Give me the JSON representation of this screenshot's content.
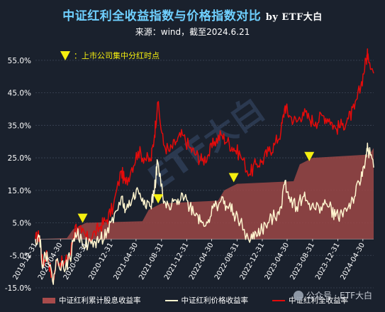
{
  "header": {
    "title": "中证红利全收益指数与价格指数对比",
    "title_by": "by ETF大白",
    "subtitle": "来源：wind，截至2024.6.21"
  },
  "legend": {
    "dividend": "中证红利累计股息收益率",
    "price": "中证红利价格收益率",
    "total": "中证红利全收益率"
  },
  "annotation_note": "：上市公司集中分红时点",
  "watermark_bg": "ETF大白",
  "watermark": "公众号 · ETF大白",
  "colors": {
    "background": "#1a212d",
    "total": "#e30b0b",
    "price": "#fff5cf",
    "dividend": "#9c4646",
    "marker": "#f5ef10",
    "title": "#6fd0ff"
  },
  "chart_data": {
    "type": "line",
    "title": "中证红利全收益指数与价格指数对比",
    "ylim": [
      -15,
      60
    ],
    "yticks": [
      -15,
      -5,
      5,
      15,
      25,
      35,
      45,
      55
    ],
    "ytick_labels": [
      "-15.0%",
      "-5.0%",
      "5.0%",
      "15.0%",
      "25.0%",
      "35.0%",
      "45.0%",
      "55.0%"
    ],
    "xlim": [
      "2019-12-31",
      "2024-06-21"
    ],
    "xticks": [
      "2019-12-31",
      "2020-04-30",
      "2020-08-31",
      "2020-12-31",
      "2021-04-30",
      "2021-08-31",
      "2021-12-31",
      "2022-04-30",
      "2022-08-31",
      "2022-12-31",
      "2023-04-30",
      "2023-08-31",
      "2023-12-31",
      "2024-04-30"
    ],
    "series": [
      {
        "name": "中证红利全收益率",
        "kind": "line",
        "color": "#e30b0b",
        "x": [
          "2019-12-31",
          "2020-01-20",
          "2020-02-04",
          "2020-02-25",
          "2020-03-23",
          "2020-04-15",
          "2020-05-15",
          "2020-06-15",
          "2020-07-10",
          "2020-08-10",
          "2020-09-10",
          "2020-10-15",
          "2020-11-10",
          "2020-12-10",
          "2021-01-10",
          "2021-02-18",
          "2021-03-10",
          "2021-04-10",
          "2021-05-10",
          "2021-06-10",
          "2021-07-10",
          "2021-07-28",
          "2021-08-12",
          "2021-09-10",
          "2021-10-10",
          "2021-11-10",
          "2021-12-10",
          "2022-01-15",
          "2022-02-15",
          "2022-03-15",
          "2022-04-15",
          "2022-05-15",
          "2022-06-15",
          "2022-07-15",
          "2022-08-15",
          "2022-09-15",
          "2022-10-31",
          "2022-11-30",
          "2022-12-31",
          "2023-01-31",
          "2023-02-28",
          "2023-03-31",
          "2023-04-20",
          "2023-05-10",
          "2023-06-15",
          "2023-07-15",
          "2023-08-15",
          "2023-09-15",
          "2023-10-20",
          "2023-11-20",
          "2023-12-20",
          "2024-01-20",
          "2024-02-20",
          "2024-03-20",
          "2024-04-20",
          "2024-05-15",
          "2024-05-25",
          "2024-06-21"
        ],
        "y": [
          0,
          1,
          -8,
          -4,
          -13,
          -6,
          -8,
          -5,
          4,
          2,
          0,
          2,
          4,
          6,
          10,
          21,
          17,
          22,
          27,
          25,
          24,
          32,
          42,
          29,
          27,
          30,
          32,
          28,
          26,
          24,
          26,
          30,
          32,
          30,
          28,
          26,
          20,
          23,
          24,
          27,
          29,
          33,
          41,
          38,
          36,
          39,
          37,
          36,
          38,
          37,
          34,
          35,
          37,
          40,
          47,
          55,
          57,
          51
        ]
      },
      {
        "name": "中证红利价格收益率",
        "kind": "line",
        "color": "#fff5cf",
        "x": [
          "2019-12-31",
          "2020-01-20",
          "2020-02-04",
          "2020-02-25",
          "2020-03-23",
          "2020-04-15",
          "2020-05-15",
          "2020-06-15",
          "2020-07-10",
          "2020-08-10",
          "2020-09-10",
          "2020-10-15",
          "2020-11-10",
          "2020-12-10",
          "2021-01-10",
          "2021-02-18",
          "2021-03-10",
          "2021-04-10",
          "2021-05-10",
          "2021-06-10",
          "2021-07-10",
          "2021-07-28",
          "2021-08-12",
          "2021-09-10",
          "2021-10-10",
          "2021-11-10",
          "2021-12-10",
          "2022-01-15",
          "2022-02-15",
          "2022-03-15",
          "2022-04-15",
          "2022-05-15",
          "2022-06-15",
          "2022-07-15",
          "2022-08-15",
          "2022-09-15",
          "2022-10-31",
          "2022-11-30",
          "2022-12-31",
          "2023-01-31",
          "2023-02-28",
          "2023-03-31",
          "2023-04-20",
          "2023-05-10",
          "2023-06-15",
          "2023-07-15",
          "2023-08-15",
          "2023-09-15",
          "2023-10-20",
          "2023-11-20",
          "2023-12-20",
          "2024-01-20",
          "2024-02-20",
          "2024-03-20",
          "2024-04-20",
          "2024-05-15",
          "2024-05-25",
          "2024-06-21"
        ],
        "y": [
          0,
          1,
          -8,
          -4,
          -13,
          -6,
          -9,
          -6,
          2,
          0,
          -2,
          -1,
          0,
          2,
          5,
          13,
          9,
          12,
          15,
          12,
          10,
          15,
          24,
          11,
          9,
          12,
          14,
          10,
          8,
          5,
          6,
          10,
          12,
          10,
          8,
          5,
          -1,
          2,
          3,
          5,
          7,
          10,
          18,
          13,
          10,
          13,
          11,
          9,
          11,
          10,
          7,
          8,
          10,
          13,
          18,
          26,
          28,
          22
        ]
      },
      {
        "name": "中证红利累计股息收益率",
        "kind": "area",
        "color": "#9c4646",
        "x": [
          "2019-12-31",
          "2020-05-31",
          "2020-06-30",
          "2020-08-31",
          "2021-05-31",
          "2021-06-30",
          "2021-08-31",
          "2022-05-31",
          "2022-06-30",
          "2022-08-31",
          "2023-05-31",
          "2023-06-30",
          "2023-08-31",
          "2024-05-31",
          "2024-06-21"
        ],
        "y": [
          0,
          0.3,
          3,
          5,
          5.5,
          9,
          11,
          11.8,
          15,
          17,
          17.8,
          23,
          25,
          26,
          28
        ]
      }
    ],
    "markers": {
      "label": "上市公司集中分红时点",
      "points": [
        {
          "x": "2020-08-15",
          "y": 6.5
        },
        {
          "x": "2021-08-15",
          "y": 12.5
        },
        {
          "x": "2022-08-15",
          "y": 19
        },
        {
          "x": "2023-08-15",
          "y": 25.5
        }
      ]
    }
  }
}
